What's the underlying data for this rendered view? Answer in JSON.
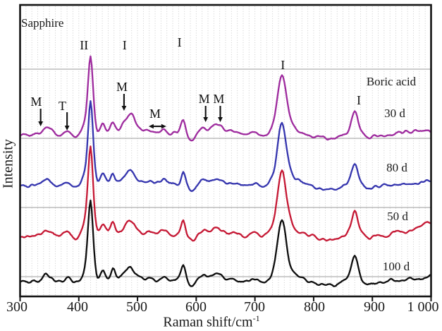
{
  "chart_data": {
    "type": "line",
    "title": "",
    "xlabel": "Raman shift/cm",
    "xlabel_sup": "-1",
    "ylabel": "Intensity",
    "xlim": [
      300,
      1000
    ],
    "x_ticks": [
      "300",
      "400",
      "500",
      "600",
      "700",
      "800",
      "900",
      "1 000"
    ],
    "x_tick_values": [
      300,
      400,
      500,
      600,
      700,
      800,
      900,
      1000
    ],
    "corner_label": "Sapphire",
    "right_label": "Boric acid",
    "grid": {
      "v_step": 10,
      "v_color": "#c6c6c6",
      "h_lines_au": [
        322,
        224,
        126,
        28
      ],
      "h_color": "#9b9b9b"
    },
    "axis_color": "#141414",
    "series": [
      {
        "name": "30 d",
        "color": "#9E2B9E",
        "offset_au": 228,
        "noise_seed": 3,
        "noise_amp": 2.2,
        "peaks": [
          [
            345,
            12,
            7
          ],
          [
            380,
            6,
            5
          ],
          [
            398,
            -6,
            7
          ],
          [
            408,
            8,
            6
          ],
          [
            420,
            112,
            4.5
          ],
          [
            430,
            -6,
            4
          ],
          [
            441,
            14,
            4
          ],
          [
            458,
            15,
            4
          ],
          [
            487,
            30,
            10
          ],
          [
            520,
            5,
            7
          ],
          [
            545,
            7,
            8
          ],
          [
            578,
            22,
            4
          ],
          [
            592,
            -9,
            6
          ],
          [
            612,
            9,
            8
          ],
          [
            636,
            15,
            9
          ],
          [
            663,
            4,
            6
          ],
          [
            700,
            5,
            7
          ],
          [
            712,
            -4,
            10
          ],
          [
            746,
            85,
            8
          ],
          [
            770,
            5,
            14
          ],
          [
            822,
            -6,
            18
          ],
          [
            870,
            35,
            6
          ],
          [
            893,
            -4,
            8
          ],
          [
            940,
            4,
            6
          ],
          [
            958,
            6,
            5
          ],
          [
            975,
            7,
            6
          ],
          [
            992,
            8,
            6
          ]
        ]
      },
      {
        "name": "80 d",
        "color": "#3535AE",
        "offset_au": 156,
        "noise_seed": 7,
        "noise_amp": 2.2,
        "peaks": [
          [
            345,
            10,
            7
          ],
          [
            380,
            5,
            5
          ],
          [
            398,
            -6,
            7
          ],
          [
            408,
            8,
            6
          ],
          [
            420,
            120,
            4.5
          ],
          [
            430,
            -6,
            4
          ],
          [
            441,
            14,
            4
          ],
          [
            458,
            15,
            4
          ],
          [
            487,
            22,
            10
          ],
          [
            520,
            5,
            7
          ],
          [
            545,
            7,
            8
          ],
          [
            578,
            22,
            4
          ],
          [
            592,
            -9,
            6
          ],
          [
            612,
            9,
            8
          ],
          [
            636,
            10,
            9
          ],
          [
            663,
            4,
            6
          ],
          [
            700,
            5,
            7
          ],
          [
            712,
            -4,
            10
          ],
          [
            746,
            88,
            8
          ],
          [
            770,
            5,
            14
          ],
          [
            822,
            -6,
            18
          ],
          [
            870,
            33,
            6
          ],
          [
            893,
            -4,
            8
          ],
          [
            950,
            4,
            8
          ],
          [
            1000,
            9,
            18
          ]
        ]
      },
      {
        "name": "50 d",
        "color": "#C51834",
        "offset_au": 85,
        "noise_seed": 13,
        "noise_amp": 2.2,
        "peaks": [
          [
            345,
            9,
            7
          ],
          [
            380,
            5,
            5
          ],
          [
            398,
            -6,
            7
          ],
          [
            408,
            8,
            6
          ],
          [
            420,
            127,
            4.5
          ],
          [
            430,
            -6,
            4
          ],
          [
            441,
            12,
            4
          ],
          [
            458,
            16,
            4
          ],
          [
            487,
            22,
            10
          ],
          [
            520,
            5,
            7
          ],
          [
            545,
            7,
            8
          ],
          [
            578,
            22,
            4
          ],
          [
            592,
            -9,
            6
          ],
          [
            612,
            9,
            8
          ],
          [
            636,
            10,
            9
          ],
          [
            663,
            4,
            6
          ],
          [
            700,
            5,
            7
          ],
          [
            712,
            -4,
            10
          ],
          [
            746,
            93,
            8
          ],
          [
            770,
            5,
            14
          ],
          [
            822,
            -6,
            18
          ],
          [
            870,
            36,
            6
          ],
          [
            893,
            -4,
            8
          ],
          [
            940,
            4,
            8
          ],
          [
            1000,
            20,
            25
          ]
        ]
      },
      {
        "name": "100 d",
        "color": "#0D0D0D",
        "offset_au": 20,
        "noise_seed": 29,
        "noise_amp": 2.2,
        "peaks": [
          [
            345,
            11,
            7
          ],
          [
            380,
            5,
            5
          ],
          [
            398,
            -6,
            7
          ],
          [
            408,
            8,
            6
          ],
          [
            420,
            115,
            4.5
          ],
          [
            430,
            -6,
            4
          ],
          [
            441,
            13,
            4
          ],
          [
            458,
            16,
            4
          ],
          [
            487,
            20,
            10
          ],
          [
            520,
            5,
            7
          ],
          [
            545,
            7,
            8
          ],
          [
            578,
            22,
            4
          ],
          [
            592,
            -9,
            6
          ],
          [
            612,
            9,
            8
          ],
          [
            636,
            11,
            9
          ],
          [
            663,
            4,
            6
          ],
          [
            700,
            5,
            7
          ],
          [
            712,
            -4,
            10
          ],
          [
            746,
            87,
            8
          ],
          [
            770,
            5,
            14
          ],
          [
            822,
            -6,
            18
          ],
          [
            870,
            40,
            6
          ],
          [
            893,
            -4,
            8
          ],
          [
            930,
            4,
            8
          ],
          [
            965,
            5,
            8
          ],
          [
            1000,
            7,
            15
          ]
        ]
      }
    ],
    "annotations": [
      {
        "text": "M",
        "x": 327.5,
        "y": 276,
        "arrow": {
          "dir": "down",
          "x": 335,
          "from": 266,
          "to": 241
        }
      },
      {
        "text": "T",
        "x": 372,
        "y": 270,
        "arrow": {
          "dir": "down",
          "x": 380,
          "from": 261,
          "to": 235
        }
      },
      {
        "text": "II",
        "x": 409,
        "y": 356,
        "arrow": null
      },
      {
        "text": "I",
        "x": 478,
        "y": 356,
        "arrow": null
      },
      {
        "text": "M",
        "x": 473.5,
        "y": 297,
        "arrow": {
          "dir": "down",
          "x": 477,
          "from": 287,
          "to": 263
        }
      },
      {
        "text": "I",
        "x": 571.5,
        "y": 360,
        "arrow": null
      },
      {
        "text": "M",
        "x": 530,
        "y": 259,
        "arrow": {
          "dir": "lr",
          "y": 241,
          "x1": 519,
          "x2": 549
        }
      },
      {
        "text": "M",
        "x": 613.5,
        "y": 280,
        "arrow": {
          "dir": "down",
          "x": 616,
          "from": 270,
          "to": 247
        }
      },
      {
        "text": "M",
        "x": 638.5,
        "y": 280,
        "arrow": {
          "dir": "down",
          "x": 641,
          "from": 270,
          "to": 247
        }
      },
      {
        "text": "I",
        "x": 747.5,
        "y": 328,
        "arrow": null
      },
      {
        "text": "I",
        "x": 877,
        "y": 278,
        "arrow": null
      }
    ]
  }
}
